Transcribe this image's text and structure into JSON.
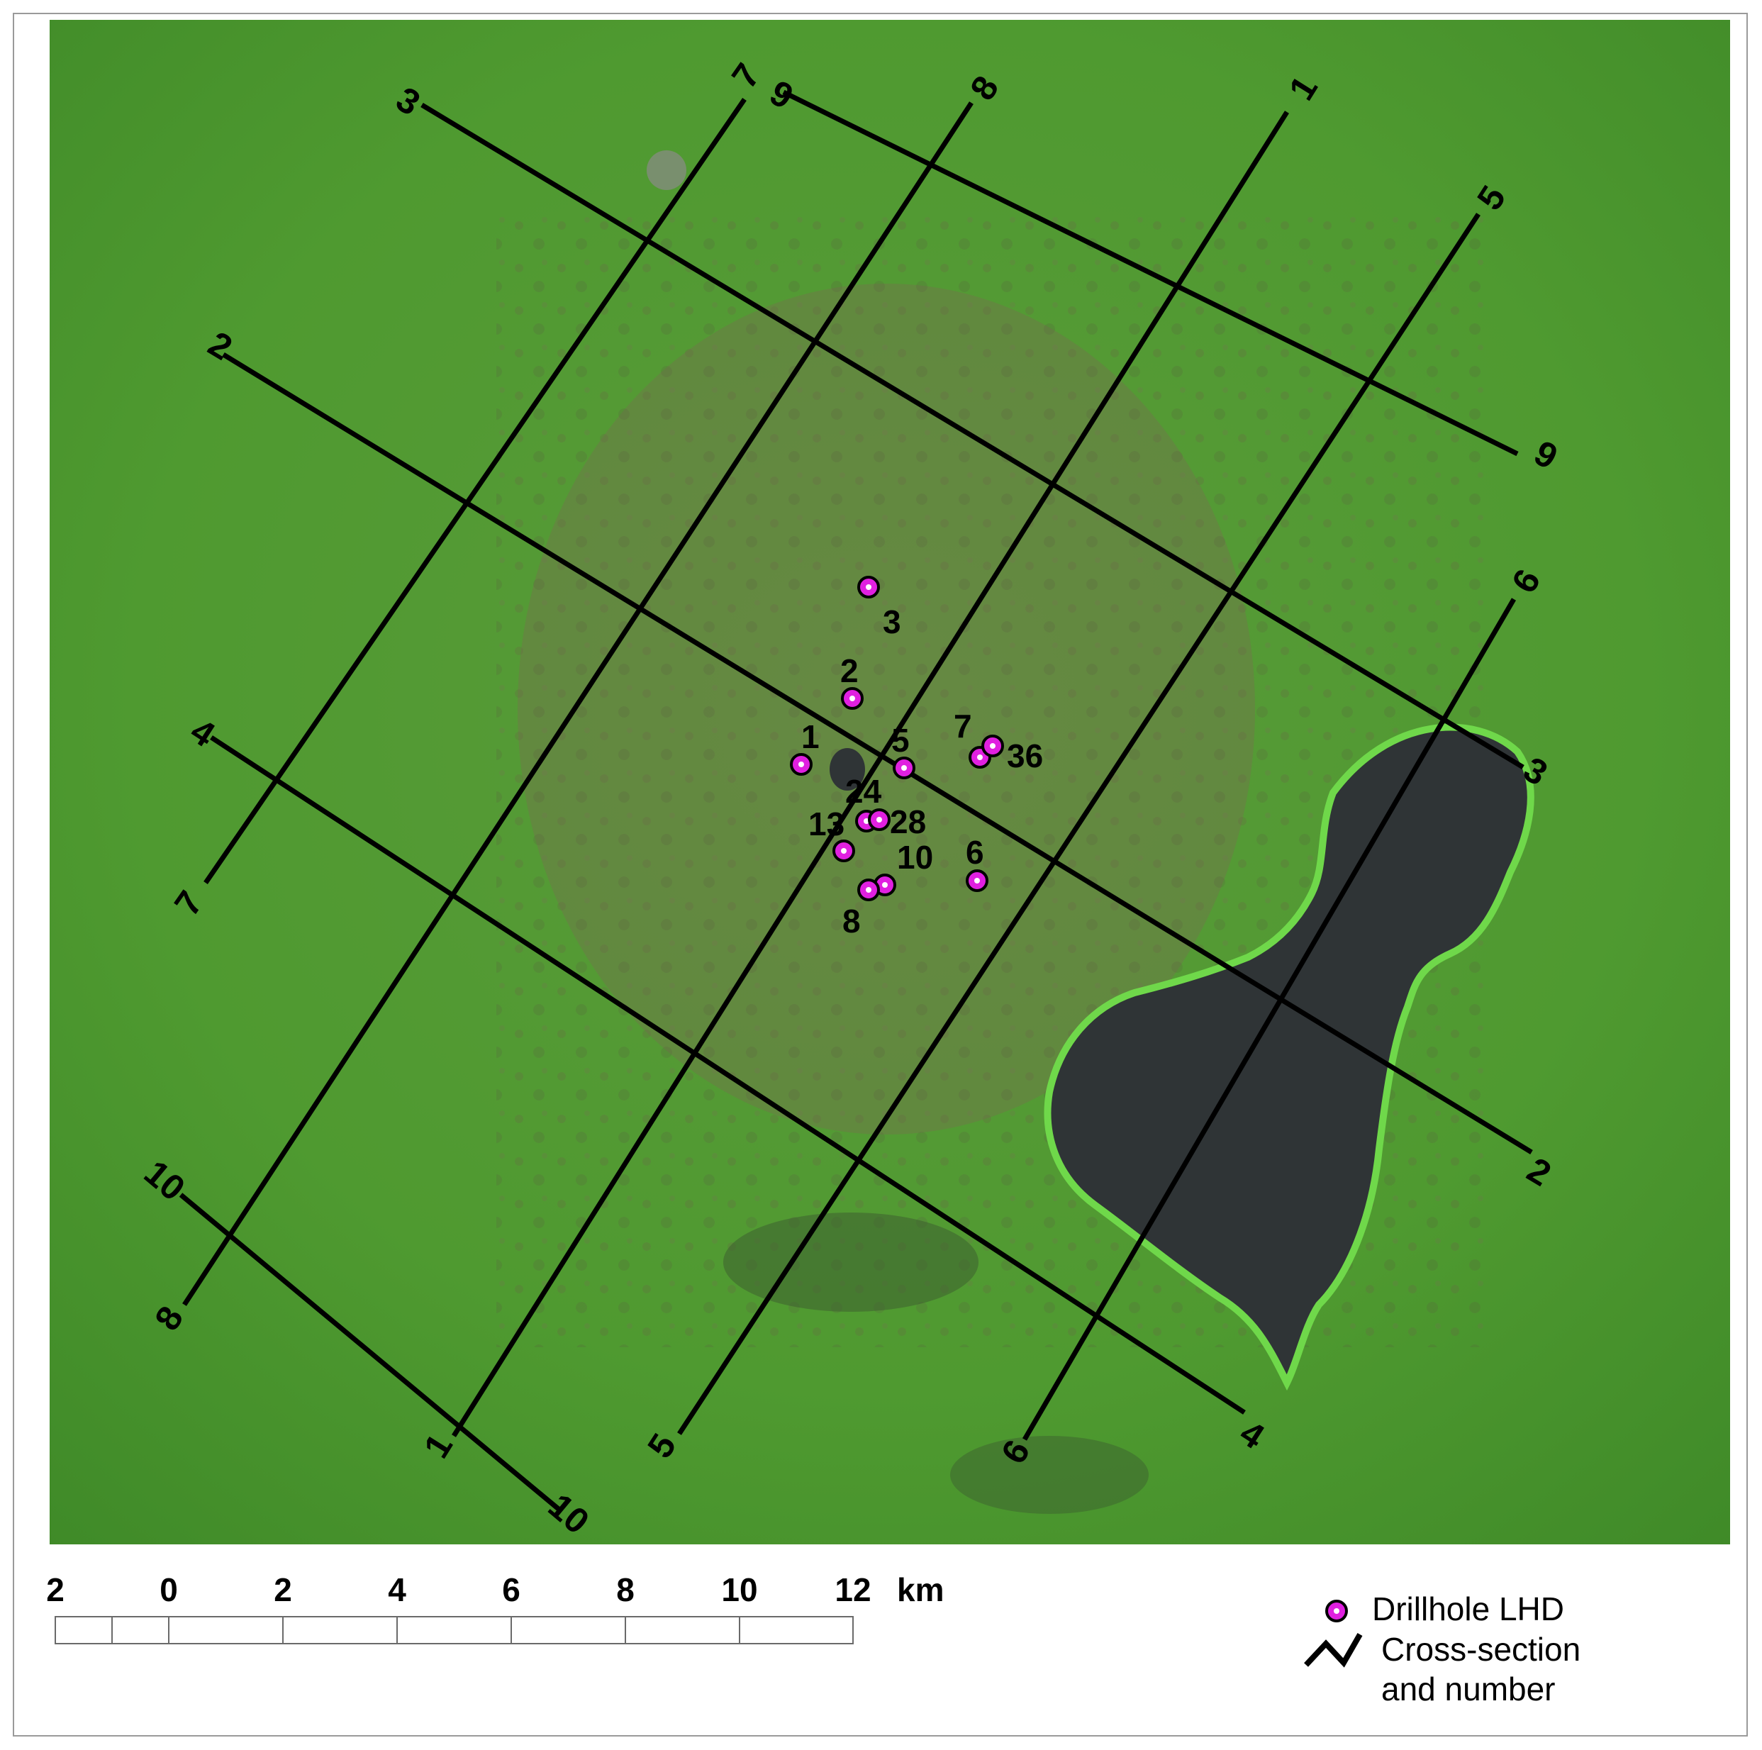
{
  "cross_sections": [
    {
      "id": "1",
      "start_label": "1",
      "end_label": "1"
    },
    {
      "id": "2",
      "start_label": "2",
      "end_label": "2"
    },
    {
      "id": "3",
      "start_label": "3",
      "end_label": "3"
    },
    {
      "id": "4",
      "start_label": "4",
      "end_label": "4"
    },
    {
      "id": "5",
      "start_label": "5",
      "end_label": "5"
    },
    {
      "id": "6",
      "start_label": "6",
      "end_label": "6"
    },
    {
      "id": "7",
      "start_label": "7",
      "end_label": "7"
    },
    {
      "id": "8",
      "start_label": "8",
      "end_label": "8"
    },
    {
      "id": "9",
      "start_label": "9",
      "end_label": "9"
    },
    {
      "id": "10",
      "start_label": "10",
      "end_label": "10"
    }
  ],
  "drillholes": [
    "1",
    "2",
    "3",
    "5",
    "6",
    "7",
    "8",
    "10",
    "13",
    "24",
    "28",
    "36"
  ],
  "scale_bar": {
    "ticks": [
      "2",
      "0",
      "2",
      "4",
      "6",
      "8",
      "10",
      "12"
    ],
    "unit": "km"
  },
  "legend": {
    "drillhole_label": "Drillhole LHD",
    "cross_section_line1": "Cross-section",
    "cross_section_line2": "and number"
  },
  "colors": {
    "terrain": "#4a9a2e",
    "lake": "#2f3436",
    "lines": "#000000",
    "drillhole": "#e020e0"
  }
}
